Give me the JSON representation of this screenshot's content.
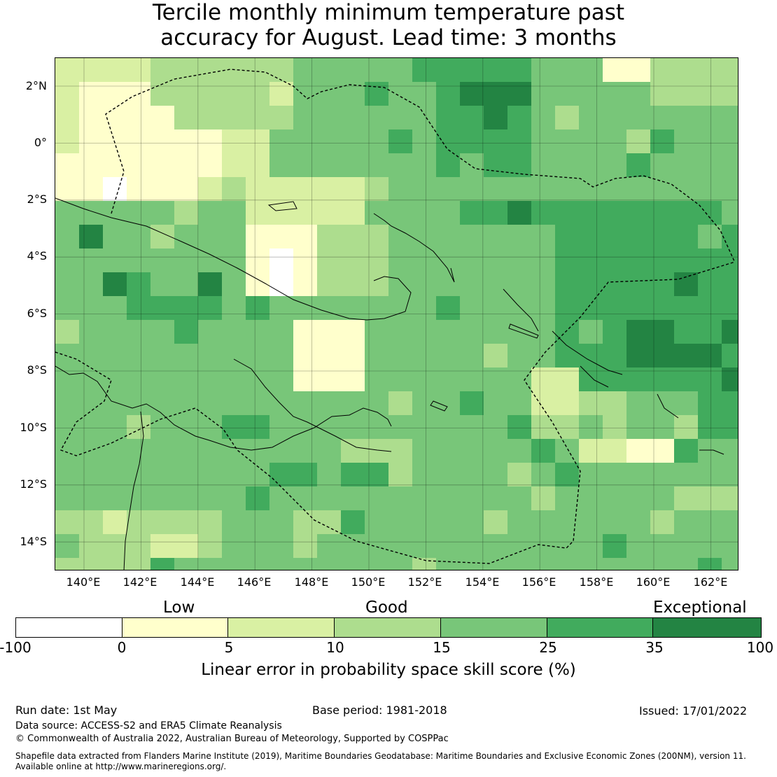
{
  "title_line1": "Tercile monthly minimum temperature past",
  "title_line2": "accuracy for August. Lead time: 3 months",
  "map": {
    "lon_range": [
      139,
      163
    ],
    "lat_range": [
      -15,
      3
    ],
    "grid_cell_deg": 0.83,
    "lat_ticks": [
      "2°N",
      "0°",
      "2°S",
      "4°S",
      "6°S",
      "8°S",
      "10°S",
      "12°S",
      "14°S"
    ],
    "lon_ticks": [
      "140°E",
      "142°E",
      "144°E",
      "146°E",
      "148°E",
      "150°E",
      "152°E",
      "154°E",
      "156°E",
      "158°E",
      "160°E",
      "162°E"
    ]
  },
  "legend": {
    "categories": [
      "Low",
      "Good",
      "Exceptional"
    ],
    "ticks": [
      "-100",
      "0",
      "5",
      "10",
      "15",
      "25",
      "35",
      "100"
    ],
    "colors": [
      "#ffffff",
      "#ffffcc",
      "#d9f0a3",
      "#addd8e",
      "#78c679",
      "#41ab5d",
      "#238443"
    ],
    "title": "Linear error in probability space skill score (%)"
  },
  "footer": {
    "run_date": "Run date: 1st May",
    "base_period": "Base period: 1981-2018",
    "issued": "Issued: 17/01/2022",
    "data_source": "Data source: ACCESS-S2 and ERA5 Climate Reanalysis",
    "copyright": "© Commonwealth of Australia 2022, Australian Bureau of Meteorology, Supported by COSPPac",
    "shapefile_line1": "Shapefile data extracted from Flanders Marine Institute (2019), Maritime Boundaries Geodatabase: Maritime Boundaries and Exclusive Economic Zones (200NM), version 11.",
    "shapefile_line2": "Available online at http://www.marineregions.org/."
  }
}
